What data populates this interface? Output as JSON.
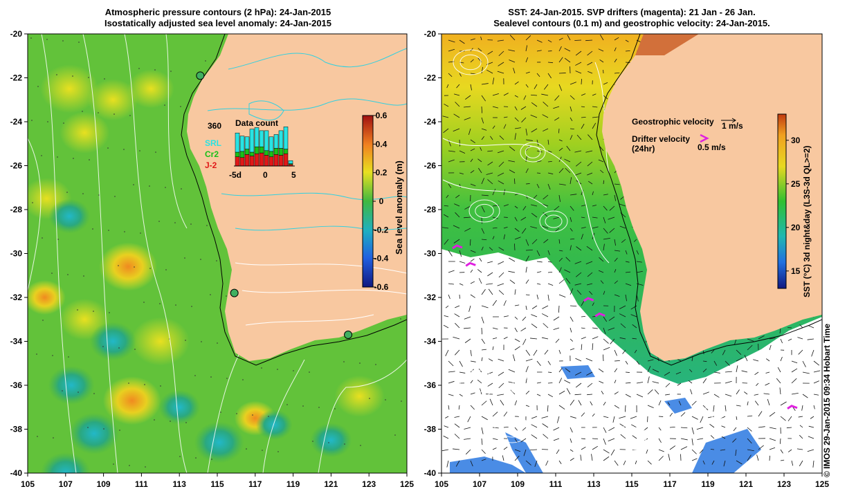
{
  "left_panel": {
    "title_line1": "Atmospheric pressure contours (2 hPa): 24-Jan-2015",
    "title_line2": "Isostatically adjusted sea level anomaly: 24-Jan-2015",
    "colorbar": {
      "label": "Sea level anomaly (m)",
      "ticks": [
        "0.6",
        "0.4",
        "0.2",
        "0",
        "-0.2",
        "-0.4",
        "-0.6"
      ]
    },
    "inset": {
      "title": "Data count",
      "max_label": "360",
      "legend": [
        {
          "label": "SRL",
          "color": "#29e3e3"
        },
        {
          "label": "Cr2",
          "color": "#18c018"
        },
        {
          "label": "J-2",
          "color": "#e01818"
        }
      ],
      "x_ticks": [
        "-5d",
        "0",
        "5"
      ],
      "bars": [
        {
          "srl": 250,
          "cr2": 60,
          "j2": 120
        },
        {
          "srl": 200,
          "cr2": 80,
          "j2": 110
        },
        {
          "srl": 160,
          "cr2": 70,
          "j2": 150
        },
        {
          "srl": 300,
          "cr2": 50,
          "j2": 130
        },
        {
          "srl": 250,
          "cr2": 90,
          "j2": 160
        },
        {
          "srl": 210,
          "cr2": 80,
          "j2": 170
        },
        {
          "srl": 260,
          "cr2": 60,
          "j2": 140
        },
        {
          "srl": 190,
          "cr2": 70,
          "j2": 120
        },
        {
          "srl": 180,
          "cr2": 80,
          "j2": 150
        },
        {
          "srl": 230,
          "cr2": 90,
          "j2": 140
        },
        {
          "srl": 290,
          "cr2": 60,
          "j2": 160
        },
        {
          "srl": 40,
          "cr2": 10,
          "j2": 20
        }
      ]
    }
  },
  "right_panel": {
    "title_line1": "SST: 24-Jan-2015. SVP drifters (magenta): 21 Jan - 26 Jan.",
    "title_line2": "Sealevel contours (0.1 m) and geostrophic velocity: 24-Jan-2015.",
    "colorbar": {
      "label": "SST (°C) 3d night&day (L3S-3d QL>=2)",
      "ticks": [
        "30",
        "25",
        "20",
        "15"
      ]
    },
    "legend": {
      "geo_label": "Geostrophic velocity",
      "geo_scale": "1 m/s",
      "drifter_label": "Drifter velocity",
      "drifter_sub": "(24hr)",
      "drifter_scale": "0.5 m/s"
    }
  },
  "axes": {
    "y_ticks": [
      "-20",
      "-22",
      "-24",
      "-26",
      "-28",
      "-30",
      "-32",
      "-34",
      "-36",
      "-38",
      "-40"
    ],
    "x_ticks": [
      "105",
      "107",
      "109",
      "111",
      "113",
      "115",
      "117",
      "119",
      "121",
      "123",
      "125"
    ]
  },
  "copyright": "© IMOS 29-Jan-2015 09:34 Hobart Time",
  "colors": {
    "land": "#f8c8a0",
    "ocean_base": "#62c23a",
    "drifter": "#e020e0",
    "contour": "#ffffff"
  },
  "stations": [
    {
      "lon": 114.1,
      "lat": -21.9
    },
    {
      "lon": 115.9,
      "lat": -31.8
    },
    {
      "lon": 121.9,
      "lat": -33.7
    }
  ],
  "drifters": [
    {
      "lon": 105.8,
      "lat": -29.7
    },
    {
      "lon": 106.5,
      "lat": -30.5
    },
    {
      "lon": 112.7,
      "lat": -32.1
    },
    {
      "lon": 113.3,
      "lat": -32.8
    },
    {
      "lon": 123.4,
      "lat": -37.0
    }
  ]
}
